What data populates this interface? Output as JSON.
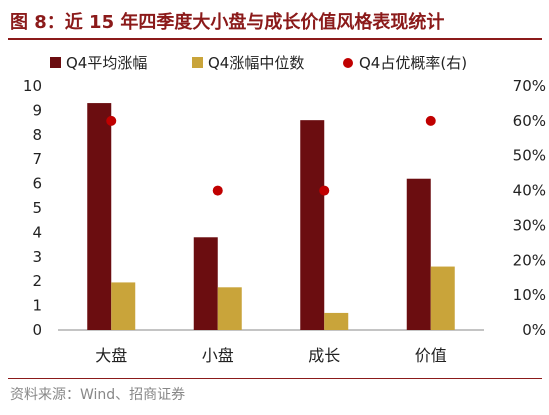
{
  "title": "图 8：近 15 年四季度大小盘与成长价值风格表现统计",
  "source": "资料来源：Wind、招商证券",
  "colors": {
    "bar1": "#6b0d10",
    "bar2": "#c9a43a",
    "dot": "#c00000",
    "title": "#8b1a1a"
  },
  "chart_data": {
    "type": "bar",
    "categories": [
      "大盘",
      "小盘",
      "成长",
      "价值"
    ],
    "series": [
      {
        "name": "Q4平均涨幅",
        "type": "bar",
        "axis": "left",
        "values": [
          9.3,
          3.8,
          8.6,
          6.2
        ]
      },
      {
        "name": "Q4涨幅中位数",
        "type": "bar",
        "axis": "left",
        "values": [
          1.95,
          1.75,
          0.7,
          2.6
        ]
      },
      {
        "name": "Q4占优概率(右)",
        "type": "scatter",
        "axis": "right",
        "values": [
          0.6,
          0.4,
          0.4,
          0.6
        ]
      }
    ],
    "y_left": {
      "min": 0,
      "max": 10,
      "step": 1,
      "ticks": [
        "0",
        "1",
        "2",
        "3",
        "4",
        "5",
        "6",
        "7",
        "8",
        "9",
        "10"
      ]
    },
    "y_right": {
      "min": 0,
      "max": 0.7,
      "step": 0.1,
      "ticks": [
        "0%",
        "10%",
        "20%",
        "30%",
        "40%",
        "50%",
        "60%",
        "70%"
      ]
    },
    "grid": false,
    "legend_position": "top"
  }
}
